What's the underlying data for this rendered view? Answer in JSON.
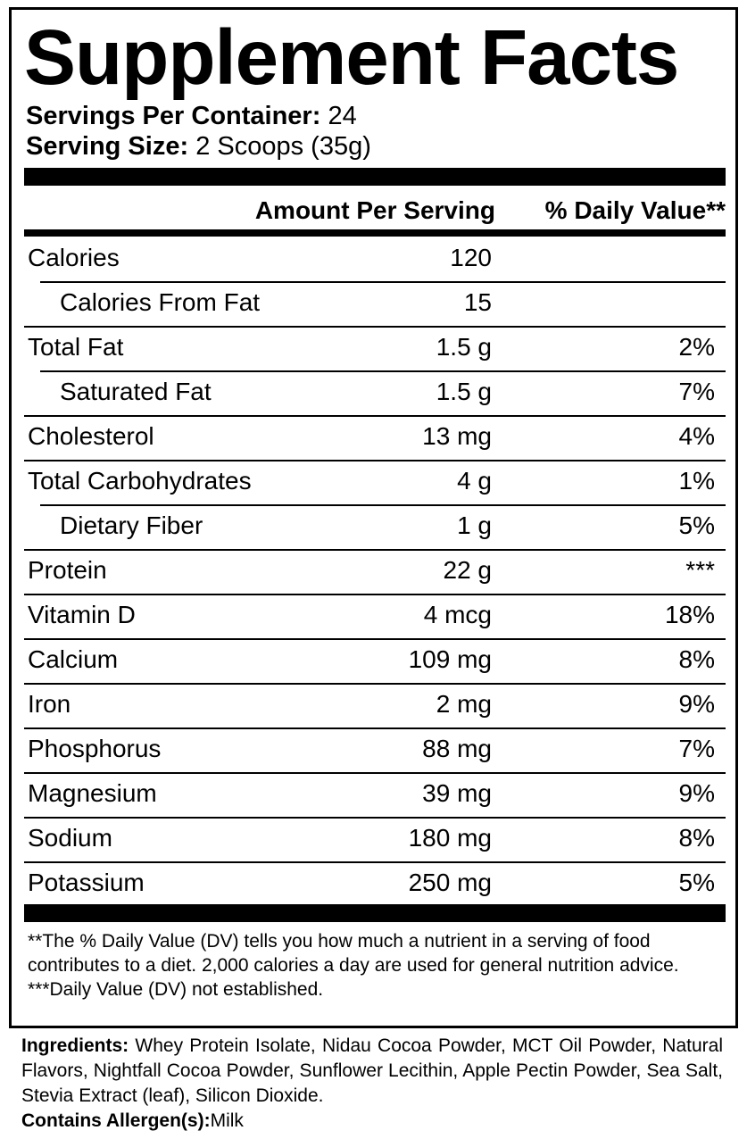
{
  "title": "Supplement Facts",
  "servings_per_container": {
    "label": "Servings Per Container:",
    "value": "24"
  },
  "serving_size": {
    "label": "Serving Size:",
    "value": "2 Scoops (35g)"
  },
  "header": {
    "amount": "Amount Per Serving",
    "dv": "% Daily Value**"
  },
  "rows": [
    {
      "name": "Calories",
      "amount": "120",
      "dv": ""
    },
    {
      "name": "Calories From Fat",
      "amount": "15",
      "dv": "",
      "indent": true
    },
    {
      "name": "Total Fat",
      "amount": "1.5 g",
      "dv": "2%"
    },
    {
      "name": "Saturated Fat",
      "amount": "1.5 g",
      "dv": "7%",
      "indent": true
    },
    {
      "name": "Cholesterol",
      "amount": "13 mg",
      "dv": "4%"
    },
    {
      "name": "Total Carbohydrates",
      "amount": "4 g",
      "dv": "1%"
    },
    {
      "name": "Dietary Fiber",
      "amount": "1 g",
      "dv": "5%",
      "indent": true
    },
    {
      "name": "Protein",
      "amount": "22 g",
      "dv": "***"
    },
    {
      "name": "Vitamin D",
      "amount": "4 mcg",
      "dv": "18%"
    },
    {
      "name": "Calcium",
      "amount": "109 mg",
      "dv": "8%"
    },
    {
      "name": "Iron",
      "amount": "2 mg",
      "dv": "9%"
    },
    {
      "name": "Phosphorus",
      "amount": "88 mg",
      "dv": "7%"
    },
    {
      "name": "Magnesium",
      "amount": "39 mg",
      "dv": "9%"
    },
    {
      "name": "Sodium",
      "amount": "180 mg",
      "dv": "8%"
    },
    {
      "name": "Potassium",
      "amount": "250 mg",
      "dv": "5%"
    }
  ],
  "footnotes": {
    "dv_note": "**The % Daily Value (DV) tells you how much a nutrient in a serving of food contributes to a diet. 2,000 calories a day are used for general nutrition advice.",
    "not_established": "***Daily Value (DV) not established."
  },
  "ingredients": {
    "label": "Ingredients:",
    "text": "Whey Protein Isolate, Nidau Cocoa Powder, MCT Oil Powder, Natural Flavors, Nightfall Cocoa Powder, Sunflower Lecithin, Apple Pectin Powder, Sea Salt, Stevia Extract (leaf), Silicon Dioxide."
  },
  "allergens": {
    "label": "Contains Allergen(s):",
    "text": "Milk"
  }
}
